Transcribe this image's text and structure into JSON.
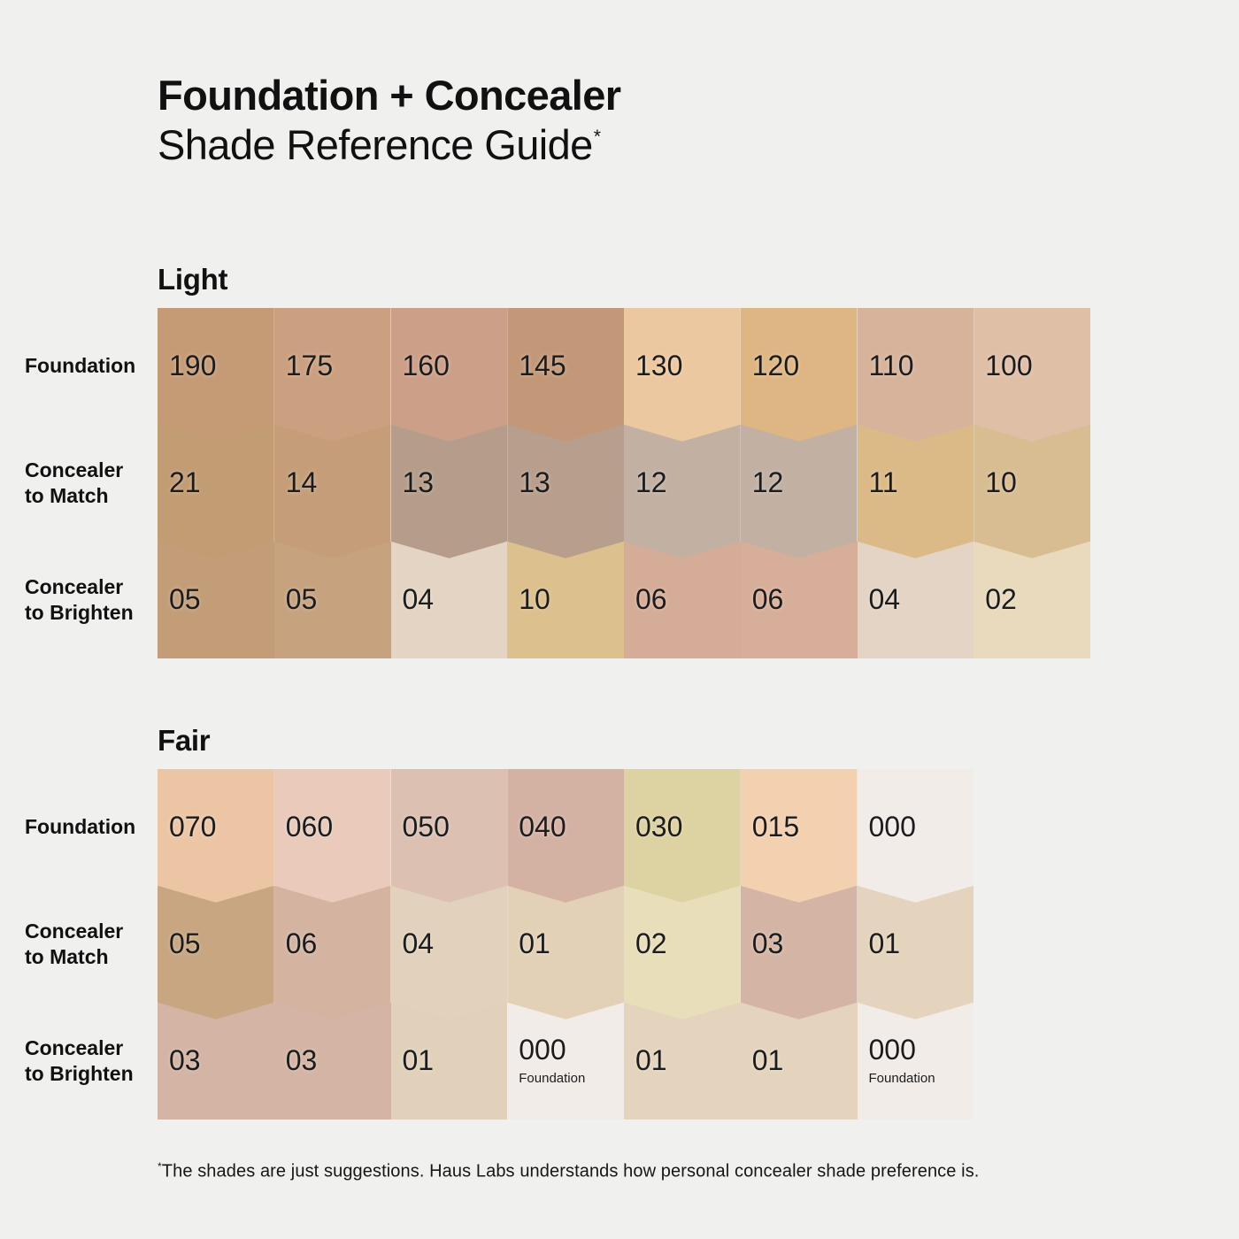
{
  "page": {
    "background": "#f0f0ef",
    "title_line1": "Foundation + Concealer",
    "title_line2": "Shade Reference Guide",
    "title_asterisk": "*",
    "footnote_asterisk": "*",
    "footnote_text": "The shades are just suggestions. Haus Labs understands how personal concealer shade preference is."
  },
  "sections": [
    {
      "id": "light",
      "heading": "Light",
      "columns": 8,
      "rows": [
        {
          "label_lines": [
            "Foundation"
          ],
          "swatches": [
            {
              "code": "190",
              "color": "#c59b75"
            },
            {
              "code": "175",
              "color": "#cba080"
            },
            {
              "code": "160",
              "color": "#cc9f88"
            },
            {
              "code": "145",
              "color": "#c39878"
            },
            {
              "code": "130",
              "color": "#ecc8a0"
            },
            {
              "code": "120",
              "color": "#deb684"
            },
            {
              "code": "110",
              "color": "#d7b39c"
            },
            {
              "code": "100",
              "color": "#e0bfa7"
            }
          ]
        },
        {
          "label_lines": [
            "Concealer",
            "to Match"
          ],
          "swatches": [
            {
              "code": "21",
              "color": "#c29c73"
            },
            {
              "code": "14",
              "color": "#c59e79"
            },
            {
              "code": "13",
              "color": "#b69c8a"
            },
            {
              "code": "13",
              "color": "#b89e8c"
            },
            {
              "code": "12",
              "color": "#c2b0a3"
            },
            {
              "code": "12",
              "color": "#c2b0a3"
            },
            {
              "code": "11",
              "color": "#dcba88"
            },
            {
              "code": "10",
              "color": "#d9bd92"
            }
          ]
        },
        {
          "label_lines": [
            "Concealer",
            "to Brighten"
          ],
          "swatches": [
            {
              "code": "05",
              "color": "#c29d78"
            },
            {
              "code": "05",
              "color": "#c6a27f"
            },
            {
              "code": "04",
              "color": "#e4d4c4"
            },
            {
              "code": "10",
              "color": "#dcc08d"
            },
            {
              "code": "06",
              "color": "#d5ac97"
            },
            {
              "code": "06",
              "color": "#d7ae9a"
            },
            {
              "code": "04",
              "color": "#e3d4c5"
            },
            {
              "code": "02",
              "color": "#e9d9bd"
            }
          ]
        }
      ]
    },
    {
      "id": "fair",
      "heading": "Fair",
      "columns": 7,
      "rows": [
        {
          "label_lines": [
            "Foundation"
          ],
          "swatches": [
            {
              "code": "070",
              "color": "#ecc6a4"
            },
            {
              "code": "060",
              "color": "#e9cabb"
            },
            {
              "code": "050",
              "color": "#dcc0b2"
            },
            {
              "code": "040",
              "color": "#d3b2a4"
            },
            {
              "code": "030",
              "color": "#ddd2a2"
            },
            {
              "code": "015",
              "color": "#f3d0b0"
            },
            {
              "code": "000",
              "color": "#f2ece9"
            }
          ]
        },
        {
          "label_lines": [
            "Concealer",
            "to Match"
          ],
          "swatches": [
            {
              "code": "05",
              "color": "#c7a681"
            },
            {
              "code": "06",
              "color": "#d4b3a1"
            },
            {
              "code": "04",
              "color": "#e1d1bd"
            },
            {
              "code": "01",
              "color": "#e3d1b7"
            },
            {
              "code": "02",
              "color": "#e8deba"
            },
            {
              "code": "03",
              "color": "#d4b5a5"
            },
            {
              "code": "01",
              "color": "#e4d4bd"
            }
          ]
        },
        {
          "label_lines": [
            "Concealer",
            "to Brighten"
          ],
          "swatches": [
            {
              "code": "03",
              "color": "#d4b4a4"
            },
            {
              "code": "03",
              "color": "#d4b4a4"
            },
            {
              "code": "01",
              "color": "#e1d1bb"
            },
            {
              "code": "000",
              "color": "#f2ece8",
              "sublabel": "Foundation"
            },
            {
              "code": "01",
              "color": "#e4d4be"
            },
            {
              "code": "01",
              "color": "#e4d4be"
            },
            {
              "code": "000",
              "color": "#f2ece8",
              "sublabel": "Foundation"
            }
          ]
        }
      ]
    }
  ]
}
